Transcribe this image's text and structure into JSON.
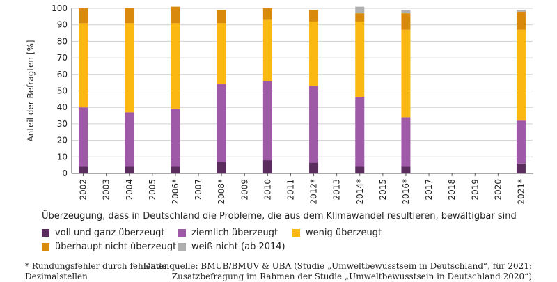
{
  "chart_data": {
    "type": "bar",
    "stacked": true,
    "ylabel": "Anteil der Befragten [%]",
    "ylim": [
      0,
      100
    ],
    "yticks": [
      0,
      10,
      20,
      30,
      40,
      50,
      60,
      70,
      80,
      90,
      100
    ],
    "grid": true,
    "legend_title": "Überzeugung, dass in Deutschland die Probleme, die aus dem Klimawandel resultieren, bewältigbar sind",
    "categories": [
      "2002",
      "2003",
      "2004",
      "2005",
      "2006*",
      "2007",
      "2008*",
      "2009",
      "2010",
      "2011",
      "2012*",
      "2013",
      "2014*",
      "2015",
      "2016*",
      "2017",
      "2018",
      "2019",
      "2020",
      "2021*"
    ],
    "series": [
      {
        "name": "voll und ganz überzeugt",
        "color": "#5b2d5e",
        "values": [
          4,
          null,
          4,
          null,
          4,
          null,
          7,
          null,
          8,
          null,
          6.5,
          null,
          4,
          null,
          4,
          null,
          null,
          null,
          null,
          6
        ]
      },
      {
        "name": "ziemlich überzeugt",
        "color": "#9e5aa7",
        "values": [
          36,
          null,
          33,
          null,
          35,
          null,
          47,
          null,
          48,
          null,
          46.5,
          null,
          42,
          null,
          30,
          null,
          null,
          null,
          null,
          26
        ]
      },
      {
        "name": "wenig überzeugt",
        "color": "#fbb813",
        "values": [
          51,
          null,
          54,
          null,
          52,
          null,
          37,
          null,
          37,
          null,
          39,
          null,
          46,
          null,
          53,
          null,
          null,
          null,
          null,
          55
        ]
      },
      {
        "name": "überhaupt nicht überzeugt",
        "color": "#d98a0c",
        "values": [
          9,
          null,
          9,
          null,
          10,
          null,
          8,
          null,
          7,
          null,
          7,
          null,
          5,
          null,
          10,
          null,
          null,
          null,
          null,
          11
        ]
      },
      {
        "name": "weiß nicht (ab 2014)",
        "color": "#b0b0b0",
        "values": [
          null,
          null,
          null,
          null,
          null,
          null,
          null,
          null,
          null,
          null,
          null,
          null,
          4,
          null,
          2,
          null,
          null,
          null,
          null,
          1
        ]
      }
    ]
  },
  "footnote": {
    "line1": "* Rundungsfehler durch fehlende",
    "line2": "Dezimalstellen"
  },
  "source": {
    "line1": "Datenquelle: BMUB/BMUV & UBA (Studie „Umweltbewusstsein in Deutschland“, für 2021:",
    "line2": "Zusatzbefragung im Rahmen der Studie „Umweltbewusstsein in Deutschland 2020“)"
  }
}
